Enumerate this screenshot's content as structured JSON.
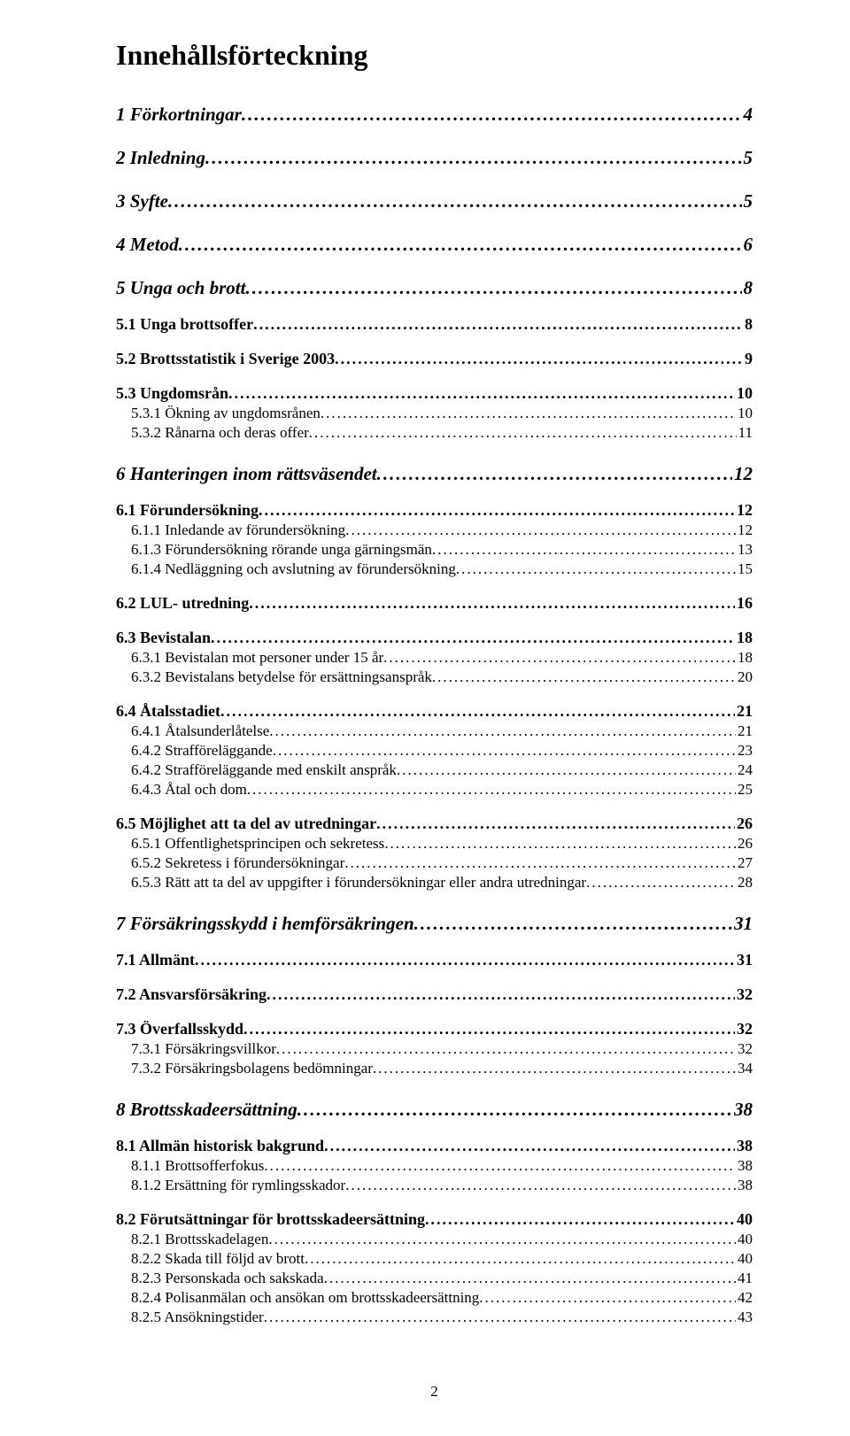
{
  "title": "Innehållsförteckning",
  "page_number": "2",
  "entries": [
    {
      "level": 1,
      "label": "1 Förkortningar",
      "page": "4"
    },
    {
      "level": 1,
      "label": "2 Inledning",
      "page": "5"
    },
    {
      "level": 1,
      "label": "3 Syfte",
      "page": "5"
    },
    {
      "level": 1,
      "label": "4 Metod",
      "page": "6"
    },
    {
      "level": 1,
      "label": "5 Unga och brott",
      "page": "8"
    },
    {
      "level": 2,
      "label": "5.1 Unga brottsoffer",
      "page": "8"
    },
    {
      "level": 2,
      "label": "5.2 Brottsstatistik i Sverige 2003",
      "page": "9"
    },
    {
      "level": 2,
      "label": "5.3 Ungdomsrån",
      "page": "10"
    },
    {
      "level": 3,
      "label": "5.3.1 Ökning av ungdomsrånen",
      "page": "10"
    },
    {
      "level": 3,
      "label": "5.3.2 Rånarna och deras offer",
      "page": "11"
    },
    {
      "level": 1,
      "label": "6 Hanteringen inom rättsväsendet",
      "page": "12"
    },
    {
      "level": 2,
      "label": "6.1 Förundersökning",
      "page": "12"
    },
    {
      "level": 3,
      "label": "6.1.1 Inledande av förundersökning",
      "page": "12"
    },
    {
      "level": 3,
      "label": "6.1.3 Förundersökning rörande unga gärningsmän",
      "page": "13"
    },
    {
      "level": 3,
      "label": "6.1.4 Nedläggning och avslutning av förundersökning",
      "page": "15"
    },
    {
      "level": 2,
      "label": "6.2 LUL- utredning",
      "page": "16"
    },
    {
      "level": 2,
      "label": "6.3 Bevistalan",
      "page": "18"
    },
    {
      "level": 3,
      "label": "6.3.1 Bevistalan mot personer under 15 år",
      "page": "18"
    },
    {
      "level": 3,
      "label": "6.3.2 Bevistalans betydelse för ersättningsanspråk",
      "page": "20"
    },
    {
      "level": 2,
      "label": "6.4 Åtalsstadiet",
      "page": "21"
    },
    {
      "level": 3,
      "label": "6.4.1 Åtalsunderlåtelse",
      "page": "21"
    },
    {
      "level": 3,
      "label": "6.4.2 Strafföreläggande",
      "page": "23"
    },
    {
      "level": 3,
      "label": "6.4.2 Strafföreläggande med enskilt anspråk",
      "page": "24"
    },
    {
      "level": 3,
      "label": "6.4.3 Åtal och dom",
      "page": "25"
    },
    {
      "level": 2,
      "label": "6.5 Möjlighet att ta del av utredningar",
      "page": "26"
    },
    {
      "level": 3,
      "label": "6.5.1 Offentlighetsprincipen och sekretess",
      "page": "26"
    },
    {
      "level": 3,
      "label": "6.5.2 Sekretess i förundersökningar",
      "page": "27"
    },
    {
      "level": 3,
      "label": "6.5.3 Rätt att ta del av uppgifter i förundersökningar eller andra utredningar",
      "page": "28"
    },
    {
      "level": 1,
      "label": "7 Försäkringsskydd i hemförsäkringen",
      "page": "31"
    },
    {
      "level": 2,
      "label": "7.1 Allmänt",
      "page": "31"
    },
    {
      "level": 2,
      "label": "7.2 Ansvarsförsäkring",
      "page": "32"
    },
    {
      "level": 2,
      "label": "7.3 Överfallsskydd",
      "page": "32"
    },
    {
      "level": 3,
      "label": "7.3.1 Försäkringsvillkor",
      "page": "32"
    },
    {
      "level": 3,
      "label": "7.3.2 Försäkringsbolagens bedömningar",
      "page": "34"
    },
    {
      "level": 1,
      "label": "8 Brottsskadeersättning",
      "page": "38"
    },
    {
      "level": 2,
      "label": "8.1 Allmän historisk bakgrund",
      "page": "38"
    },
    {
      "level": 3,
      "label": "8.1.1 Brottsofferfokus",
      "page": "38"
    },
    {
      "level": 3,
      "label": "8.1.2 Ersättning för rymlingsskador",
      "page": "38"
    },
    {
      "level": 2,
      "label": "8.2 Förutsättningar för brottsskadeersättning",
      "page": "40"
    },
    {
      "level": 3,
      "label": "8.2.1 Brottsskadelagen",
      "page": "40"
    },
    {
      "level": 3,
      "label": "8.2.2 Skada till följd av brott",
      "page": "40"
    },
    {
      "level": 3,
      "label": "8.2.3 Personskada och sakskada",
      "page": "41"
    },
    {
      "level": 3,
      "label": "8.2.4 Polisanmälan och ansökan om brottsskadeersättning",
      "page": "42"
    },
    {
      "level": 3,
      "label": "8.2.5 Ansökningstider",
      "page": "43"
    }
  ]
}
